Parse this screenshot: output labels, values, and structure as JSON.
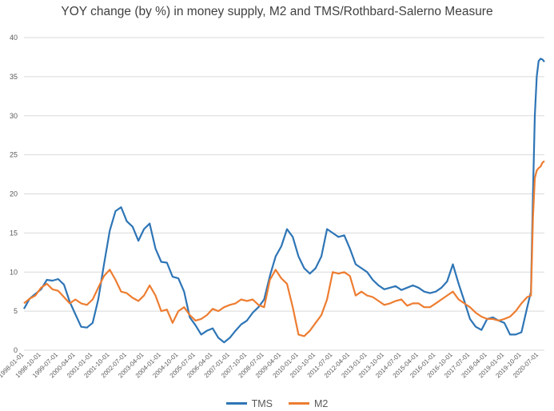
{
  "chart_data": {
    "type": "line",
    "title": "YOY change (by %) in money supply, M2 and TMS/Rothbard-Salerno Measure",
    "xlabel": "",
    "ylabel": "",
    "ylim": [
      0,
      40
    ],
    "yticks": [
      0,
      5,
      10,
      15,
      20,
      25,
      30,
      35,
      40
    ],
    "grid": true,
    "legend_position": "bottom",
    "x_start": "1998-01-01",
    "x_end": "2020-10-01",
    "xtick_labels": [
      "1998-01-01",
      "1998-10-01",
      "1999-07-01",
      "2000-04-01",
      "2001-01-01",
      "2001-10-01",
      "2002-07-01",
      "2003-04-01",
      "2004-01-01",
      "2004-10-01",
      "2005-07-01",
      "2006-04-01",
      "2007-01-01",
      "2007-10-01",
      "2008-07-01",
      "2009-04-01",
      "2010-01-01",
      "2010-10-01",
      "2011-07-01",
      "2012-04-01",
      "2013-01-01",
      "2013-10-01",
      "2014-07-01",
      "2015-04-01",
      "2016-01-01",
      "2016-10-01",
      "2017-07-01",
      "2018-04-01",
      "2019-01-01",
      "2019-10-01",
      "2020-07-01"
    ],
    "series": [
      {
        "name": "TMS",
        "color": "#2e75b6",
        "points": [
          [
            "1998-01-01",
            5.3
          ],
          [
            "1998-04-01",
            6.6
          ],
          [
            "1998-07-01",
            7.2
          ],
          [
            "1998-10-01",
            7.8
          ],
          [
            "1999-01-01",
            9.0
          ],
          [
            "1999-04-01",
            8.9
          ],
          [
            "1999-07-01",
            9.1
          ],
          [
            "1999-10-01",
            8.4
          ],
          [
            "2000-01-01",
            6.2
          ],
          [
            "2000-04-01",
            4.6
          ],
          [
            "2000-07-01",
            3.0
          ],
          [
            "2000-10-01",
            2.9
          ],
          [
            "2001-01-01",
            3.5
          ],
          [
            "2001-04-01",
            6.5
          ],
          [
            "2001-07-01",
            11.0
          ],
          [
            "2001-10-01",
            15.3
          ],
          [
            "2002-01-01",
            17.8
          ],
          [
            "2002-04-01",
            18.3
          ],
          [
            "2002-07-01",
            16.5
          ],
          [
            "2002-10-01",
            15.8
          ],
          [
            "2003-01-01",
            14.0
          ],
          [
            "2003-04-01",
            15.5
          ],
          [
            "2003-07-01",
            16.2
          ],
          [
            "2003-10-01",
            13.0
          ],
          [
            "2004-01-01",
            11.3
          ],
          [
            "2004-04-01",
            11.2
          ],
          [
            "2004-07-01",
            9.4
          ],
          [
            "2004-10-01",
            9.2
          ],
          [
            "2005-01-01",
            7.5
          ],
          [
            "2005-04-01",
            4.2
          ],
          [
            "2005-07-01",
            3.2
          ],
          [
            "2005-10-01",
            2.0
          ],
          [
            "2006-01-01",
            2.5
          ],
          [
            "2006-04-01",
            2.8
          ],
          [
            "2006-07-01",
            1.6
          ],
          [
            "2006-10-01",
            1.0
          ],
          [
            "2007-01-01",
            1.6
          ],
          [
            "2007-04-01",
            2.5
          ],
          [
            "2007-07-01",
            3.3
          ],
          [
            "2007-10-01",
            3.8
          ],
          [
            "2008-01-01",
            4.8
          ],
          [
            "2008-04-01",
            5.5
          ],
          [
            "2008-07-01",
            6.5
          ],
          [
            "2008-10-01",
            9.5
          ],
          [
            "2009-01-01",
            12.0
          ],
          [
            "2009-04-01",
            13.3
          ],
          [
            "2009-07-01",
            15.5
          ],
          [
            "2009-10-01",
            14.5
          ],
          [
            "2010-01-01",
            12.0
          ],
          [
            "2010-04-01",
            10.5
          ],
          [
            "2010-07-01",
            9.8
          ],
          [
            "2010-10-01",
            10.5
          ],
          [
            "2011-01-01",
            12.0
          ],
          [
            "2011-04-01",
            15.5
          ],
          [
            "2011-07-01",
            15.0
          ],
          [
            "2011-10-01",
            14.5
          ],
          [
            "2012-01-01",
            14.7
          ],
          [
            "2012-04-01",
            13.0
          ],
          [
            "2012-07-01",
            11.0
          ],
          [
            "2012-10-01",
            10.5
          ],
          [
            "2013-01-01",
            10.0
          ],
          [
            "2013-04-01",
            9.0
          ],
          [
            "2013-07-01",
            8.3
          ],
          [
            "2013-10-01",
            7.8
          ],
          [
            "2014-01-01",
            8.0
          ],
          [
            "2014-04-01",
            8.2
          ],
          [
            "2014-07-01",
            7.7
          ],
          [
            "2014-10-01",
            8.0
          ],
          [
            "2015-01-01",
            8.3
          ],
          [
            "2015-04-01",
            8.0
          ],
          [
            "2015-07-01",
            7.5
          ],
          [
            "2015-10-01",
            7.3
          ],
          [
            "2016-01-01",
            7.5
          ],
          [
            "2016-04-01",
            8.0
          ],
          [
            "2016-07-01",
            8.8
          ],
          [
            "2016-10-01",
            11.0
          ],
          [
            "2017-01-01",
            8.5
          ],
          [
            "2017-04-01",
            6.3
          ],
          [
            "2017-07-01",
            4.0
          ],
          [
            "2017-10-01",
            3.0
          ],
          [
            "2018-01-01",
            2.6
          ],
          [
            "2018-04-01",
            4.0
          ],
          [
            "2018-07-01",
            4.2
          ],
          [
            "2018-10-01",
            3.8
          ],
          [
            "2019-01-01",
            3.5
          ],
          [
            "2019-04-01",
            2.0
          ],
          [
            "2019-07-01",
            2.0
          ],
          [
            "2019-10-01",
            2.3
          ],
          [
            "2020-01-01",
            5.5
          ],
          [
            "2020-03-01",
            7.5
          ],
          [
            "2020-04-01",
            20.0
          ],
          [
            "2020-05-01",
            30.0
          ],
          [
            "2020-06-01",
            35.0
          ],
          [
            "2020-07-01",
            37.0
          ],
          [
            "2020-08-01",
            37.3
          ],
          [
            "2020-09-01",
            37.2
          ],
          [
            "2020-10-01",
            36.9
          ]
        ]
      },
      {
        "name": "M2",
        "color": "#ed7d31",
        "points": [
          [
            "1998-01-01",
            6.0
          ],
          [
            "1998-04-01",
            6.6
          ],
          [
            "1998-07-01",
            7.0
          ],
          [
            "1998-10-01",
            8.0
          ],
          [
            "1999-01-01",
            8.5
          ],
          [
            "1999-04-01",
            7.8
          ],
          [
            "1999-07-01",
            7.6
          ],
          [
            "1999-10-01",
            6.8
          ],
          [
            "2000-01-01",
            6.0
          ],
          [
            "2000-04-01",
            6.5
          ],
          [
            "2000-07-01",
            6.0
          ],
          [
            "2000-10-01",
            5.8
          ],
          [
            "2001-01-01",
            6.5
          ],
          [
            "2001-04-01",
            8.0
          ],
          [
            "2001-07-01",
            9.5
          ],
          [
            "2001-10-01",
            10.3
          ],
          [
            "2002-01-01",
            9.0
          ],
          [
            "2002-04-01",
            7.5
          ],
          [
            "2002-07-01",
            7.3
          ],
          [
            "2002-10-01",
            6.7
          ],
          [
            "2003-01-01",
            6.3
          ],
          [
            "2003-04-01",
            7.0
          ],
          [
            "2003-07-01",
            8.3
          ],
          [
            "2003-10-01",
            7.0
          ],
          [
            "2004-01-01",
            5.0
          ],
          [
            "2004-04-01",
            5.2
          ],
          [
            "2004-07-01",
            3.5
          ],
          [
            "2004-10-01",
            5.0
          ],
          [
            "2005-01-01",
            5.5
          ],
          [
            "2005-04-01",
            4.5
          ],
          [
            "2005-07-01",
            3.8
          ],
          [
            "2005-10-01",
            4.0
          ],
          [
            "2006-01-01",
            4.5
          ],
          [
            "2006-04-01",
            5.3
          ],
          [
            "2006-07-01",
            5.0
          ],
          [
            "2006-10-01",
            5.5
          ],
          [
            "2007-01-01",
            5.8
          ],
          [
            "2007-04-01",
            6.0
          ],
          [
            "2007-07-01",
            6.5
          ],
          [
            "2007-10-01",
            6.3
          ],
          [
            "2008-01-01",
            6.5
          ],
          [
            "2008-04-01",
            5.8
          ],
          [
            "2008-07-01",
            5.5
          ],
          [
            "2008-10-01",
            9.0
          ],
          [
            "2009-01-01",
            10.3
          ],
          [
            "2009-04-01",
            9.2
          ],
          [
            "2009-07-01",
            8.5
          ],
          [
            "2009-10-01",
            5.5
          ],
          [
            "2010-01-01",
            2.0
          ],
          [
            "2010-04-01",
            1.8
          ],
          [
            "2010-07-01",
            2.5
          ],
          [
            "2010-10-01",
            3.5
          ],
          [
            "2011-01-01",
            4.5
          ],
          [
            "2011-04-01",
            6.5
          ],
          [
            "2011-07-01",
            10.0
          ],
          [
            "2011-10-01",
            9.8
          ],
          [
            "2012-01-01",
            10.0
          ],
          [
            "2012-04-01",
            9.5
          ],
          [
            "2012-07-01",
            7.0
          ],
          [
            "2012-10-01",
            7.5
          ],
          [
            "2013-01-01",
            7.0
          ],
          [
            "2013-04-01",
            6.8
          ],
          [
            "2013-07-01",
            6.3
          ],
          [
            "2013-10-01",
            5.8
          ],
          [
            "2014-01-01",
            6.0
          ],
          [
            "2014-04-01",
            6.3
          ],
          [
            "2014-07-01",
            6.5
          ],
          [
            "2014-10-01",
            5.7
          ],
          [
            "2015-01-01",
            6.0
          ],
          [
            "2015-04-01",
            6.0
          ],
          [
            "2015-07-01",
            5.5
          ],
          [
            "2015-10-01",
            5.5
          ],
          [
            "2016-01-01",
            6.0
          ],
          [
            "2016-04-01",
            6.5
          ],
          [
            "2016-07-01",
            7.0
          ],
          [
            "2016-10-01",
            7.5
          ],
          [
            "2017-01-01",
            6.5
          ],
          [
            "2017-04-01",
            6.0
          ],
          [
            "2017-07-01",
            5.5
          ],
          [
            "2017-10-01",
            4.8
          ],
          [
            "2018-01-01",
            4.3
          ],
          [
            "2018-04-01",
            4.0
          ],
          [
            "2018-07-01",
            4.0
          ],
          [
            "2018-10-01",
            3.8
          ],
          [
            "2019-01-01",
            4.0
          ],
          [
            "2019-04-01",
            4.3
          ],
          [
            "2019-07-01",
            5.0
          ],
          [
            "2019-10-01",
            6.0
          ],
          [
            "2020-01-01",
            6.8
          ],
          [
            "2020-03-01",
            7.0
          ],
          [
            "2020-04-01",
            17.0
          ],
          [
            "2020-05-01",
            22.0
          ],
          [
            "2020-06-01",
            23.0
          ],
          [
            "2020-07-01",
            23.3
          ],
          [
            "2020-08-01",
            23.5
          ],
          [
            "2020-09-01",
            24.0
          ],
          [
            "2020-10-01",
            24.2
          ]
        ]
      }
    ]
  }
}
